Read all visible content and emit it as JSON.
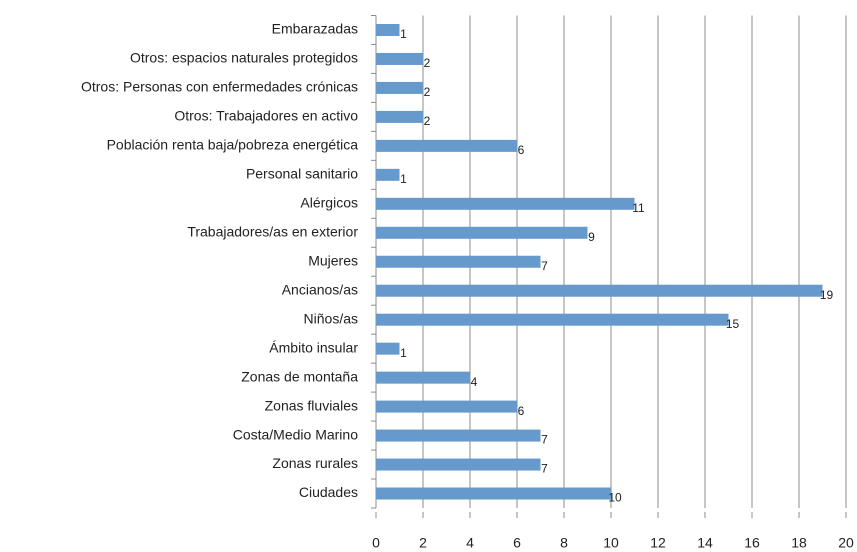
{
  "chart_data": {
    "type": "bar",
    "orientation": "horizontal",
    "categories": [
      "Embarazadas",
      "Otros: espacios naturales protegidos",
      "Otros: Personas con enfermedades crónicas",
      "Otros: Trabajadores en activo",
      "Población renta baja/pobreza energética",
      "Personal sanitario",
      "Alérgicos",
      "Trabajadores/as en exterior",
      "Mujeres",
      "Ancianos/as",
      "Niños/as",
      "Ámbito insular",
      "Zonas de montaña",
      "Zonas fluviales",
      "Costa/Medio Marino",
      "Zonas rurales",
      "Ciudades"
    ],
    "values": [
      1,
      2,
      2,
      2,
      6,
      1,
      11,
      9,
      7,
      19,
      15,
      1,
      4,
      6,
      7,
      7,
      10
    ],
    "color": "#6699cc",
    "xlim": [
      0,
      20
    ],
    "xticks": [
      0,
      2,
      4,
      6,
      8,
      10,
      12,
      14,
      16,
      18,
      20
    ],
    "grid": true
  }
}
